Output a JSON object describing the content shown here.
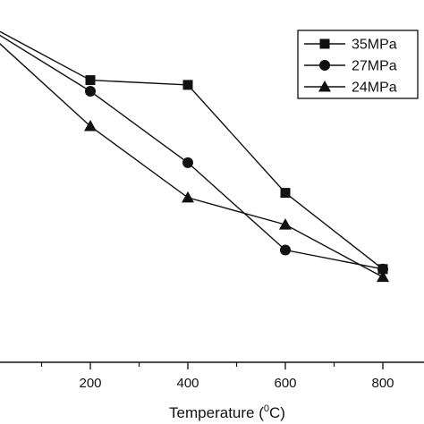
{
  "chart_data": {
    "type": "line",
    "xlabel": "Temperature (",
    "xlabel_sup": "0",
    "xlabel_end": "C)",
    "xlim": [
      0,
      800
    ],
    "xticks": [
      200,
      400,
      600,
      800
    ],
    "xtick_labels": [
      "200",
      "400",
      "600",
      "800"
    ],
    "ylim": [
      0,
      1
    ],
    "grid": false,
    "legend_position": "top-right",
    "x": [
      0,
      200,
      400,
      600,
      800
    ],
    "series": [
      {
        "name": "35MPa",
        "marker": "square",
        "values": [
          1.0,
          0.835,
          0.82,
          0.48,
          0.24
        ]
      },
      {
        "name": "27MPa",
        "marker": "circle",
        "values": [
          0.99,
          0.8,
          0.575,
          0.3,
          0.24
        ]
      },
      {
        "name": "24MPa",
        "marker": "triangle",
        "values": [
          0.97,
          0.69,
          0.465,
          0.38,
          0.215
        ]
      }
    ]
  }
}
